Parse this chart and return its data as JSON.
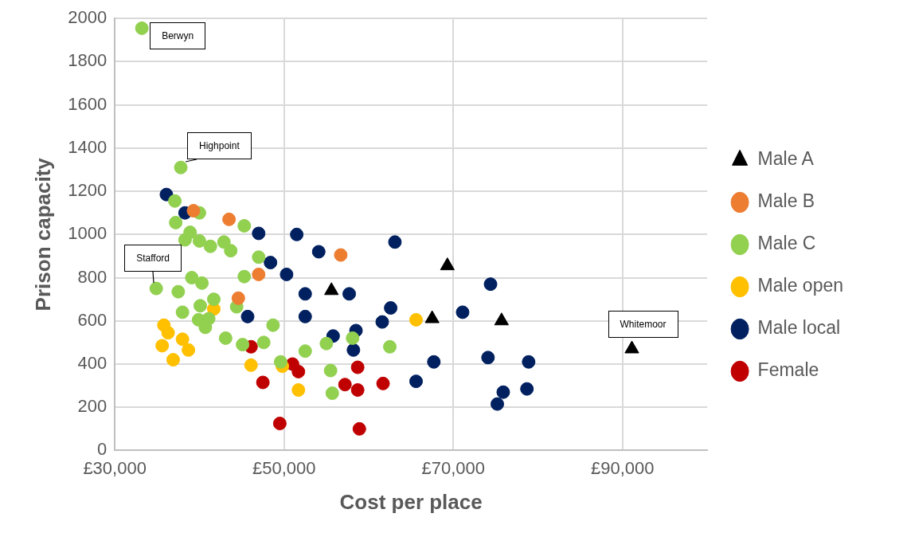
{
  "chart_data": {
    "type": "scatter",
    "xlabel": "Cost per place",
    "ylabel": "Prison capacity",
    "xlim": [
      30000,
      100000
    ],
    "xticks": [
      {
        "value": 30000,
        "label": "£30,000"
      },
      {
        "value": 50000,
        "label": "£50,000"
      },
      {
        "value": 70000,
        "label": "£70,000"
      },
      {
        "value": 90000,
        "label": "£90,000"
      }
    ],
    "ylim": [
      0,
      2000
    ],
    "yticks": [
      0,
      200,
      400,
      600,
      800,
      1000,
      1200,
      1400,
      1600,
      1800,
      2000
    ],
    "grid": true,
    "legend": "right",
    "marker": "circle",
    "series": [
      {
        "name": "Male A",
        "color": "#000000",
        "marker": "triangle",
        "x": [
          55600,
          69300,
          67500,
          75700,
          91100
        ],
        "values": [
          740,
          855,
          610,
          600,
          470
        ]
      },
      {
        "name": "Male B",
        "color": "#ed7d31",
        "x": [
          39300,
          43500,
          56700,
          47000,
          44600
        ],
        "values": [
          1110,
          1070,
          905,
          815,
          705
        ]
      },
      {
        "name": "Male C",
        "color": "#92d050",
        "x": [
          33200,
          37800,
          37100,
          40000,
          37200,
          45300,
          38900,
          38300,
          40000,
          41300,
          42900,
          43700,
          47000,
          45300,
          39100,
          40300,
          34900,
          37500,
          41700,
          44400,
          38000,
          40100,
          39900,
          41100,
          40700,
          48700,
          43100,
          45100,
          47600,
          52500,
          49600,
          55000,
          58100,
          62500,
          55500,
          55700
        ],
        "values": [
          1955,
          1310,
          1155,
          1100,
          1055,
          1040,
          1010,
          975,
          970,
          945,
          965,
          925,
          895,
          805,
          800,
          775,
          750,
          735,
          700,
          665,
          640,
          670,
          605,
          610,
          570,
          580,
          520,
          490,
          500,
          460,
          410,
          495,
          520,
          480,
          370,
          265
        ]
      },
      {
        "name": "Male open",
        "color": "#ffc000",
        "x": [
          35800,
          36300,
          35600,
          38000,
          38700,
          36900,
          41700,
          46100,
          49800,
          51700,
          65600
        ],
        "values": [
          580,
          545,
          485,
          515,
          465,
          420,
          655,
          395,
          390,
          280,
          605
        ]
      },
      {
        "name": "Male local",
        "color": "#002060",
        "x": [
          36100,
          38300,
          47000,
          48400,
          50300,
          45700,
          51500,
          54100,
          63100,
          52500,
          57700,
          52500,
          62600,
          61600,
          55800,
          58500,
          58200,
          65600,
          74400,
          71100,
          67700,
          74100,
          78900,
          75900,
          75200,
          78700
        ],
        "values": [
          1185,
          1100,
          1005,
          870,
          815,
          620,
          1000,
          920,
          965,
          725,
          725,
          620,
          660,
          595,
          530,
          555,
          465,
          320,
          770,
          640,
          410,
          430,
          410,
          270,
          215,
          285
        ]
      },
      {
        "name": "Female",
        "color": "#c00000",
        "x": [
          46100,
          47500,
          49500,
          51000,
          51700,
          58700,
          57200,
          58700,
          61700,
          58900
        ],
        "values": [
          480,
          315,
          125,
          400,
          365,
          385,
          305,
          280,
          310,
          100
        ]
      }
    ],
    "annotations": [
      {
        "text": "Berwyn",
        "x": 33200,
        "y": 1955
      },
      {
        "text": "Highpoint",
        "x": 37800,
        "y": 1310
      },
      {
        "text": "Stafford",
        "x": 34900,
        "y": 750
      },
      {
        "text": "Whitemoor",
        "x": 91100,
        "y": 470
      }
    ]
  }
}
